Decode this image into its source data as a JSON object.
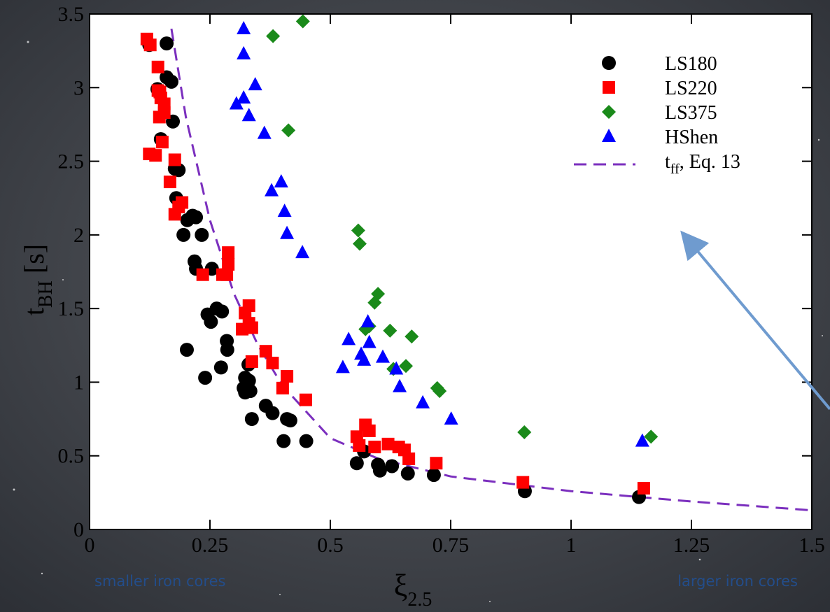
{
  "chart_data": {
    "type": "scatter",
    "xlabel": {
      "main": "ξ",
      "sub": "2.5"
    },
    "ylabel": {
      "main": "t",
      "sub": "BH",
      "rest": " [s]"
    },
    "xlim": [
      0,
      1.5
    ],
    "ylim": [
      0,
      3.5
    ],
    "xticks": [
      0,
      0.25,
      0.5,
      0.75,
      1,
      1.25,
      1.5
    ],
    "yticks": [
      0,
      0.5,
      1,
      1.5,
      2,
      2.5,
      3,
      3.5
    ],
    "annotations": [
      "smaller iron cores",
      "larger iron cores"
    ],
    "series": [
      {
        "name": "LS180",
        "marker": "circle",
        "color": "#000000",
        "x": [
          0.124,
          0.16,
          0.141,
          0.16,
          0.17,
          0.148,
          0.173,
          0.177,
          0.185,
          0.18,
          0.195,
          0.203,
          0.214,
          0.221,
          0.233,
          0.218,
          0.221,
          0.254,
          0.245,
          0.252,
          0.264,
          0.275,
          0.285,
          0.286,
          0.273,
          0.202,
          0.24,
          0.33,
          0.323,
          0.331,
          0.32,
          0.323,
          0.334,
          0.337,
          0.366,
          0.38,
          0.41,
          0.417,
          0.403,
          0.45,
          0.555,
          0.599,
          0.603,
          0.628,
          0.57,
          0.661,
          0.715,
          0.904,
          1.141
        ],
        "values": [
          3.29,
          3.3,
          2.99,
          3.07,
          3.04,
          2.65,
          2.77,
          2.45,
          2.44,
          2.25,
          2.0,
          2.1,
          2.13,
          2.12,
          2.0,
          1.82,
          1.77,
          1.77,
          1.46,
          1.41,
          1.5,
          1.48,
          1.28,
          1.22,
          1.1,
          1.22,
          1.03,
          1.12,
          1.03,
          1.01,
          0.96,
          0.93,
          0.94,
          0.75,
          0.84,
          0.79,
          0.75,
          0.74,
          0.6,
          0.6,
          0.45,
          0.44,
          0.4,
          0.43,
          0.53,
          0.38,
          0.37,
          0.26,
          0.22
        ]
      },
      {
        "name": "LS220",
        "marker": "square",
        "color": "#ff0000",
        "x": [
          0.119,
          0.126,
          0.142,
          0.142,
          0.146,
          0.148,
          0.155,
          0.155,
          0.145,
          0.151,
          0.124,
          0.137,
          0.177,
          0.167,
          0.192,
          0.185,
          0.177,
          0.288,
          0.288,
          0.285,
          0.276,
          0.235,
          0.331,
          0.323,
          0.331,
          0.337,
          0.317,
          0.337,
          0.366,
          0.38,
          0.41,
          0.401,
          0.449,
          0.573,
          0.581,
          0.555,
          0.56,
          0.592,
          0.62,
          0.642,
          0.654,
          0.663,
          0.72,
          0.9,
          1.151
        ],
        "values": [
          3.33,
          3.29,
          3.14,
          2.98,
          2.97,
          2.93,
          2.89,
          2.83,
          2.8,
          2.63,
          2.55,
          2.54,
          2.51,
          2.36,
          2.22,
          2.19,
          2.14,
          1.88,
          1.8,
          1.73,
          1.73,
          1.73,
          1.52,
          1.47,
          1.4,
          1.37,
          1.36,
          1.14,
          1.21,
          1.13,
          1.04,
          0.96,
          0.88,
          0.71,
          0.67,
          0.63,
          0.57,
          0.56,
          0.58,
          0.56,
          0.54,
          0.48,
          0.45,
          0.32,
          0.28
        ]
      },
      {
        "name": "LS375",
        "marker": "diamond",
        "color": "#1a8a1a",
        "x": [
          0.443,
          0.381,
          0.413,
          0.558,
          0.561,
          0.599,
          0.592,
          0.581,
          0.573,
          0.624,
          0.669,
          0.631,
          0.657,
          0.722,
          0.727,
          0.903,
          1.166
        ],
        "values": [
          3.45,
          3.35,
          2.71,
          2.03,
          1.94,
          1.6,
          1.54,
          1.38,
          1.36,
          1.35,
          1.31,
          1.09,
          1.11,
          0.96,
          0.94,
          0.66,
          0.63
        ]
      },
      {
        "name": "HShen",
        "marker": "triangle",
        "color": "#0000ff",
        "x": [
          0.32,
          0.32,
          0.344,
          0.32,
          0.305,
          0.331,
          0.363,
          0.378,
          0.398,
          0.405,
          0.41,
          0.442,
          0.538,
          0.578,
          0.581,
          0.564,
          0.609,
          0.57,
          0.526,
          0.637,
          0.644,
          0.692,
          0.751,
          1.148
        ],
        "values": [
          3.4,
          3.23,
          3.02,
          2.93,
          2.89,
          2.81,
          2.69,
          2.3,
          2.36,
          2.16,
          2.01,
          1.88,
          1.29,
          1.41,
          1.27,
          1.19,
          1.17,
          1.15,
          1.1,
          1.09,
          0.97,
          0.86,
          0.75,
          0.6
        ]
      }
    ],
    "curve": {
      "name_main": "t",
      "name_sub": "ff",
      "name_rest": ", Eq. 13",
      "color": "#7b2fbe",
      "x": [
        0.17,
        0.2,
        0.25,
        0.3,
        0.35,
        0.4,
        0.5,
        0.6,
        0.75,
        1.0,
        1.25,
        1.5
      ],
      "values": [
        3.4,
        2.8,
        2.1,
        1.6,
        1.25,
        0.98,
        0.62,
        0.48,
        0.36,
        0.26,
        0.19,
        0.13
      ]
    }
  }
}
